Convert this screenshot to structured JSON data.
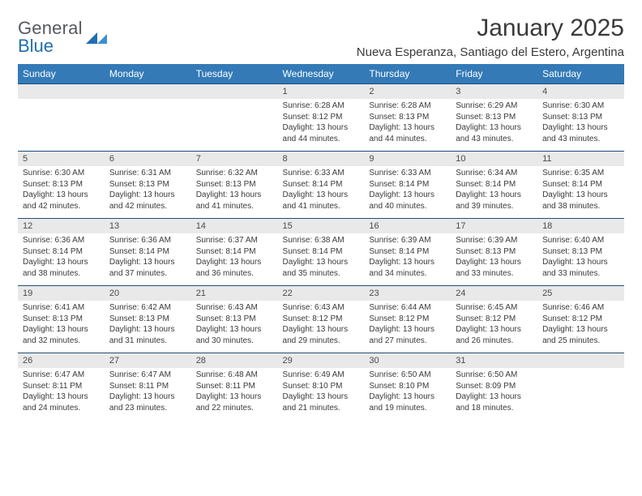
{
  "brand": {
    "name_top": "General",
    "name_bottom": "Blue"
  },
  "title": "January 2025",
  "location": "Nueva Esperanza, Santiago del Estero, Argentina",
  "colors": {
    "header_bg": "#337ab7",
    "header_text": "#ffffff",
    "date_row_bg": "#e9e9e9",
    "date_row_border": "#1f4e79",
    "logo_blue": "#1f6fb2",
    "text": "#3a3a3a"
  },
  "day_headers": [
    "Sunday",
    "Monday",
    "Tuesday",
    "Wednesday",
    "Thursday",
    "Friday",
    "Saturday"
  ],
  "weeks": [
    [
      null,
      null,
      null,
      {
        "date": "1",
        "sunrise": "Sunrise: 6:28 AM",
        "sunset": "Sunset: 8:12 PM",
        "daylight1": "Daylight: 13 hours",
        "daylight2": "and 44 minutes."
      },
      {
        "date": "2",
        "sunrise": "Sunrise: 6:28 AM",
        "sunset": "Sunset: 8:13 PM",
        "daylight1": "Daylight: 13 hours",
        "daylight2": "and 44 minutes."
      },
      {
        "date": "3",
        "sunrise": "Sunrise: 6:29 AM",
        "sunset": "Sunset: 8:13 PM",
        "daylight1": "Daylight: 13 hours",
        "daylight2": "and 43 minutes."
      },
      {
        "date": "4",
        "sunrise": "Sunrise: 6:30 AM",
        "sunset": "Sunset: 8:13 PM",
        "daylight1": "Daylight: 13 hours",
        "daylight2": "and 43 minutes."
      }
    ],
    [
      {
        "date": "5",
        "sunrise": "Sunrise: 6:30 AM",
        "sunset": "Sunset: 8:13 PM",
        "daylight1": "Daylight: 13 hours",
        "daylight2": "and 42 minutes."
      },
      {
        "date": "6",
        "sunrise": "Sunrise: 6:31 AM",
        "sunset": "Sunset: 8:13 PM",
        "daylight1": "Daylight: 13 hours",
        "daylight2": "and 42 minutes."
      },
      {
        "date": "7",
        "sunrise": "Sunrise: 6:32 AM",
        "sunset": "Sunset: 8:13 PM",
        "daylight1": "Daylight: 13 hours",
        "daylight2": "and 41 minutes."
      },
      {
        "date": "8",
        "sunrise": "Sunrise: 6:33 AM",
        "sunset": "Sunset: 8:14 PM",
        "daylight1": "Daylight: 13 hours",
        "daylight2": "and 41 minutes."
      },
      {
        "date": "9",
        "sunrise": "Sunrise: 6:33 AM",
        "sunset": "Sunset: 8:14 PM",
        "daylight1": "Daylight: 13 hours",
        "daylight2": "and 40 minutes."
      },
      {
        "date": "10",
        "sunrise": "Sunrise: 6:34 AM",
        "sunset": "Sunset: 8:14 PM",
        "daylight1": "Daylight: 13 hours",
        "daylight2": "and 39 minutes."
      },
      {
        "date": "11",
        "sunrise": "Sunrise: 6:35 AM",
        "sunset": "Sunset: 8:14 PM",
        "daylight1": "Daylight: 13 hours",
        "daylight2": "and 38 minutes."
      }
    ],
    [
      {
        "date": "12",
        "sunrise": "Sunrise: 6:36 AM",
        "sunset": "Sunset: 8:14 PM",
        "daylight1": "Daylight: 13 hours",
        "daylight2": "and 38 minutes."
      },
      {
        "date": "13",
        "sunrise": "Sunrise: 6:36 AM",
        "sunset": "Sunset: 8:14 PM",
        "daylight1": "Daylight: 13 hours",
        "daylight2": "and 37 minutes."
      },
      {
        "date": "14",
        "sunrise": "Sunrise: 6:37 AM",
        "sunset": "Sunset: 8:14 PM",
        "daylight1": "Daylight: 13 hours",
        "daylight2": "and 36 minutes."
      },
      {
        "date": "15",
        "sunrise": "Sunrise: 6:38 AM",
        "sunset": "Sunset: 8:14 PM",
        "daylight1": "Daylight: 13 hours",
        "daylight2": "and 35 minutes."
      },
      {
        "date": "16",
        "sunrise": "Sunrise: 6:39 AM",
        "sunset": "Sunset: 8:14 PM",
        "daylight1": "Daylight: 13 hours",
        "daylight2": "and 34 minutes."
      },
      {
        "date": "17",
        "sunrise": "Sunrise: 6:39 AM",
        "sunset": "Sunset: 8:13 PM",
        "daylight1": "Daylight: 13 hours",
        "daylight2": "and 33 minutes."
      },
      {
        "date": "18",
        "sunrise": "Sunrise: 6:40 AM",
        "sunset": "Sunset: 8:13 PM",
        "daylight1": "Daylight: 13 hours",
        "daylight2": "and 33 minutes."
      }
    ],
    [
      {
        "date": "19",
        "sunrise": "Sunrise: 6:41 AM",
        "sunset": "Sunset: 8:13 PM",
        "daylight1": "Daylight: 13 hours",
        "daylight2": "and 32 minutes."
      },
      {
        "date": "20",
        "sunrise": "Sunrise: 6:42 AM",
        "sunset": "Sunset: 8:13 PM",
        "daylight1": "Daylight: 13 hours",
        "daylight2": "and 31 minutes."
      },
      {
        "date": "21",
        "sunrise": "Sunrise: 6:43 AM",
        "sunset": "Sunset: 8:13 PM",
        "daylight1": "Daylight: 13 hours",
        "daylight2": "and 30 minutes."
      },
      {
        "date": "22",
        "sunrise": "Sunrise: 6:43 AM",
        "sunset": "Sunset: 8:12 PM",
        "daylight1": "Daylight: 13 hours",
        "daylight2": "and 29 minutes."
      },
      {
        "date": "23",
        "sunrise": "Sunrise: 6:44 AM",
        "sunset": "Sunset: 8:12 PM",
        "daylight1": "Daylight: 13 hours",
        "daylight2": "and 27 minutes."
      },
      {
        "date": "24",
        "sunrise": "Sunrise: 6:45 AM",
        "sunset": "Sunset: 8:12 PM",
        "daylight1": "Daylight: 13 hours",
        "daylight2": "and 26 minutes."
      },
      {
        "date": "25",
        "sunrise": "Sunrise: 6:46 AM",
        "sunset": "Sunset: 8:12 PM",
        "daylight1": "Daylight: 13 hours",
        "daylight2": "and 25 minutes."
      }
    ],
    [
      {
        "date": "26",
        "sunrise": "Sunrise: 6:47 AM",
        "sunset": "Sunset: 8:11 PM",
        "daylight1": "Daylight: 13 hours",
        "daylight2": "and 24 minutes."
      },
      {
        "date": "27",
        "sunrise": "Sunrise: 6:47 AM",
        "sunset": "Sunset: 8:11 PM",
        "daylight1": "Daylight: 13 hours",
        "daylight2": "and 23 minutes."
      },
      {
        "date": "28",
        "sunrise": "Sunrise: 6:48 AM",
        "sunset": "Sunset: 8:11 PM",
        "daylight1": "Daylight: 13 hours",
        "daylight2": "and 22 minutes."
      },
      {
        "date": "29",
        "sunrise": "Sunrise: 6:49 AM",
        "sunset": "Sunset: 8:10 PM",
        "daylight1": "Daylight: 13 hours",
        "daylight2": "and 21 minutes."
      },
      {
        "date": "30",
        "sunrise": "Sunrise: 6:50 AM",
        "sunset": "Sunset: 8:10 PM",
        "daylight1": "Daylight: 13 hours",
        "daylight2": "and 19 minutes."
      },
      {
        "date": "31",
        "sunrise": "Sunrise: 6:50 AM",
        "sunset": "Sunset: 8:09 PM",
        "daylight1": "Daylight: 13 hours",
        "daylight2": "and 18 minutes."
      },
      null
    ]
  ]
}
